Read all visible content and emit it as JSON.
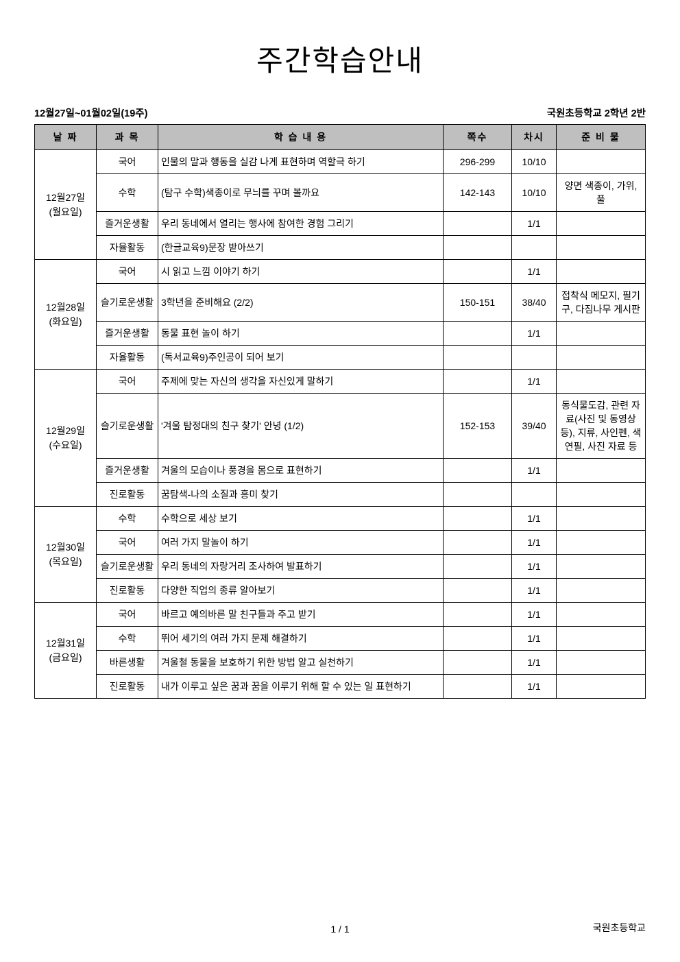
{
  "title": "주간학습안내",
  "period": "12월27일~01월02일(19주)",
  "class_info": "국원초등학교 2학년 2반",
  "headers": {
    "date": "날 짜",
    "subject": "과 목",
    "content": "학 습 내 용",
    "pages": "쪽수",
    "session": "차시",
    "prep": "준 비 물"
  },
  "days": [
    {
      "date_line1": "12월27일",
      "date_line2": "(월요일)",
      "rows": [
        {
          "subject": "국어",
          "content": "인물의 말과 행동을 실감 나게 표현하며 역할극 하기",
          "pages": "296-299",
          "session": "10/10",
          "prep": ""
        },
        {
          "subject": "수학",
          "content": "(탐구 수학)색종이로 무늬를 꾸며 볼까요",
          "pages": "142-143",
          "session": "10/10",
          "prep": "양면 색종이, 가위, 풀"
        },
        {
          "subject": "즐거운생활",
          "content": "우리 동네에서 열리는 행사에 참여한 경험 그리기",
          "pages": "",
          "session": "1/1",
          "prep": ""
        },
        {
          "subject": "자율활동",
          "content": "(한글교육9)문장 받아쓰기",
          "pages": "",
          "session": "",
          "prep": ""
        }
      ]
    },
    {
      "date_line1": "12월28일",
      "date_line2": "(화요일)",
      "rows": [
        {
          "subject": "국어",
          "content": "시 읽고 느낌 이야기 하기",
          "pages": "",
          "session": "1/1",
          "prep": ""
        },
        {
          "subject": "슬기로운생활",
          "content": "3학년을 준비해요 (2/2)",
          "pages": "150-151",
          "session": "38/40",
          "prep": "접착식 메모지, 필기구, 다짐나무 게시판"
        },
        {
          "subject": "즐거운생활",
          "content": "동물 표현 놀이 하기",
          "pages": "",
          "session": "1/1",
          "prep": ""
        },
        {
          "subject": "자율활동",
          "content": "(독서교육9)주인공이 되어 보기",
          "pages": "",
          "session": "",
          "prep": ""
        }
      ]
    },
    {
      "date_line1": "12월29일",
      "date_line2": "(수요일)",
      "rows": [
        {
          "subject": "국어",
          "content": "주제에 맞는 자신의 생각을 자신있게 말하기",
          "pages": "",
          "session": "1/1",
          "prep": ""
        },
        {
          "subject": "슬기로운생활",
          "content": "'겨울 탐정대의 친구 찾기' 안녕 (1/2)",
          "pages": "152-153",
          "session": "39/40",
          "prep": "동식물도감, 관련 자료(사진 및 동영상 등), 지류, 사인펜, 색연필, 사진 자료 등"
        },
        {
          "subject": "즐거운생활",
          "content": "겨울의 모습이나 풍경을 몸으로 표현하기",
          "pages": "",
          "session": "1/1",
          "prep": ""
        },
        {
          "subject": "진로활동",
          "content": "꿈탐색-나의 소질과 흥미 찾기",
          "pages": "",
          "session": "",
          "prep": ""
        }
      ]
    },
    {
      "date_line1": "12월30일",
      "date_line2": "(목요일)",
      "rows": [
        {
          "subject": "수학",
          "content": "수학으로 세상 보기",
          "pages": "",
          "session": "1/1",
          "prep": ""
        },
        {
          "subject": "국어",
          "content": "여러 가지 말놀이 하기",
          "pages": "",
          "session": "1/1",
          "prep": ""
        },
        {
          "subject": "슬기로운생활",
          "content": "우리 동네의 자랑거리 조사하여 발표하기",
          "pages": "",
          "session": "1/1",
          "prep": ""
        },
        {
          "subject": "진로활동",
          "content": "다양한 직업의 종류 알아보기",
          "pages": "",
          "session": "1/1",
          "prep": ""
        }
      ]
    },
    {
      "date_line1": "12월31일",
      "date_line2": "(금요일)",
      "rows": [
        {
          "subject": "국어",
          "content": "바르고 예의바른 말 친구들과 주고 받기",
          "pages": "",
          "session": "1/1",
          "prep": ""
        },
        {
          "subject": "수학",
          "content": "뛰어 세기의 여러 가지 문제 해결하기",
          "pages": "",
          "session": "1/1",
          "prep": ""
        },
        {
          "subject": "바른생활",
          "content": "겨울철 동물을 보호하기 위한 방법 알고 실천하기",
          "pages": "",
          "session": "1/1",
          "prep": ""
        },
        {
          "subject": "진로활동",
          "content": "내가 이루고 싶은 꿈과 꿈을 이루기 위해 할 수 있는 일 표현하기",
          "pages": "",
          "session": "1/1",
          "prep": ""
        }
      ]
    }
  ],
  "footer": {
    "page": "1 / 1",
    "school": "국원초등학교"
  }
}
